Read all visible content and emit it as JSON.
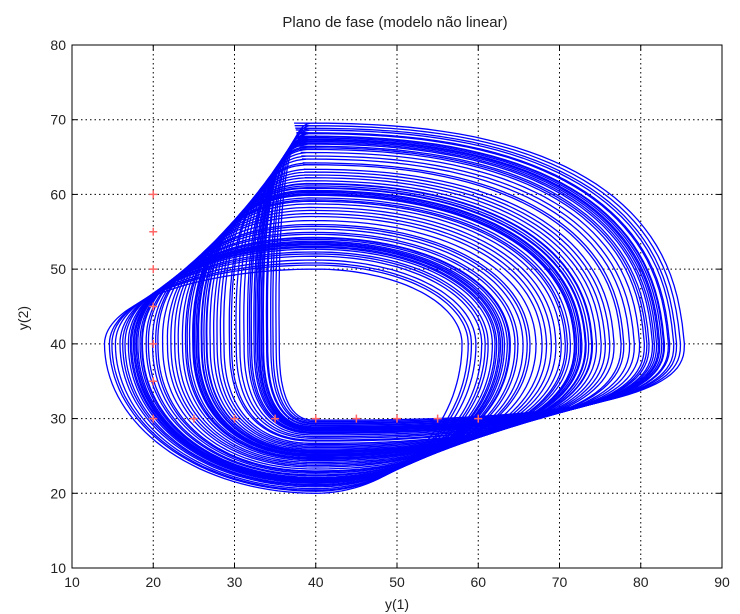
{
  "chart_data": {
    "type": "line",
    "title": "Plano de fase (modelo não linear)",
    "xlabel": "y(1)",
    "ylabel": "y(2)",
    "xlim": [
      10,
      90
    ],
    "ylim": [
      10,
      80
    ],
    "xticks": [
      "10",
      "20",
      "30",
      "40",
      "50",
      "60",
      "70",
      "80",
      "90"
    ],
    "yticks": [
      "10",
      "20",
      "30",
      "40",
      "50",
      "60",
      "70",
      "80"
    ],
    "grid": true,
    "grid_style": "dotted",
    "line_color": "#0000ff",
    "marker_color": "#ff6666",
    "equilibrium": [
      40,
      40
    ],
    "initial_points": [
      [
        20,
        30
      ],
      [
        20,
        35
      ],
      [
        20,
        40
      ],
      [
        20,
        45
      ],
      [
        20,
        50
      ],
      [
        20,
        55
      ],
      [
        20,
        60
      ],
      [
        25,
        30
      ],
      [
        30,
        30
      ],
      [
        35,
        30
      ],
      [
        40,
        30
      ],
      [
        45,
        30
      ],
      [
        50,
        30
      ],
      [
        55,
        30
      ],
      [
        60,
        30
      ]
    ],
    "trajectory_band": {
      "x_min": [
        14,
        36
      ],
      "x_max": [
        58,
        86
      ],
      "y_min": [
        20,
        30
      ],
      "y_max": [
        50,
        70
      ]
    }
  }
}
